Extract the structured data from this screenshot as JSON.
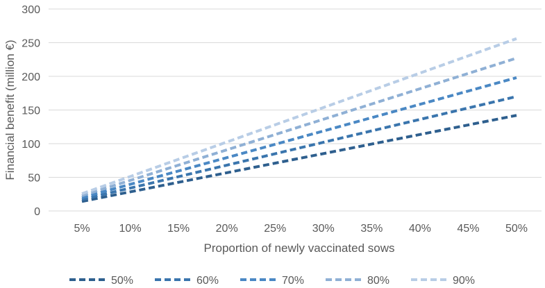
{
  "chart_data": {
    "type": "line",
    "title": "",
    "xlabel": "Proportion of newly vaccinated sows",
    "ylabel": "Financial benefit (million €)",
    "categories": [
      "5%",
      "10%",
      "15%",
      "20%",
      "25%",
      "30%",
      "35%",
      "40%",
      "45%",
      "50%"
    ],
    "x": [
      5,
      10,
      15,
      20,
      25,
      30,
      35,
      40,
      45,
      50
    ],
    "ylim": [
      0,
      300
    ],
    "yticks": [
      "0",
      "50",
      "100",
      "150",
      "200",
      "250",
      "300"
    ],
    "grid": "horizontal",
    "line_style": "dashed",
    "legend_position": "bottom",
    "series": [
      {
        "name": "50%",
        "color": "#2e5f8e",
        "values": [
          14.2,
          28.4,
          42.6,
          56.8,
          71.0,
          85.2,
          99.4,
          113.6,
          127.8,
          142.0
        ]
      },
      {
        "name": "60%",
        "color": "#3a75ad",
        "values": [
          17.0,
          34.0,
          51.0,
          68.0,
          85.0,
          102.0,
          119.0,
          136.0,
          153.0,
          170.0
        ]
      },
      {
        "name": "70%",
        "color": "#4a88c4",
        "values": [
          19.8,
          39.6,
          59.4,
          79.2,
          99.0,
          118.8,
          138.6,
          158.4,
          178.2,
          198.0
        ]
      },
      {
        "name": "80%",
        "color": "#8fb0d5",
        "values": [
          22.7,
          45.4,
          68.1,
          90.8,
          113.5,
          136.2,
          158.9,
          181.6,
          204.3,
          227.0
        ]
      },
      {
        "name": "90%",
        "color": "#b8cde6",
        "values": [
          25.6,
          51.2,
          76.8,
          102.4,
          128.0,
          153.6,
          179.2,
          204.8,
          230.4,
          256.0
        ]
      }
    ]
  }
}
